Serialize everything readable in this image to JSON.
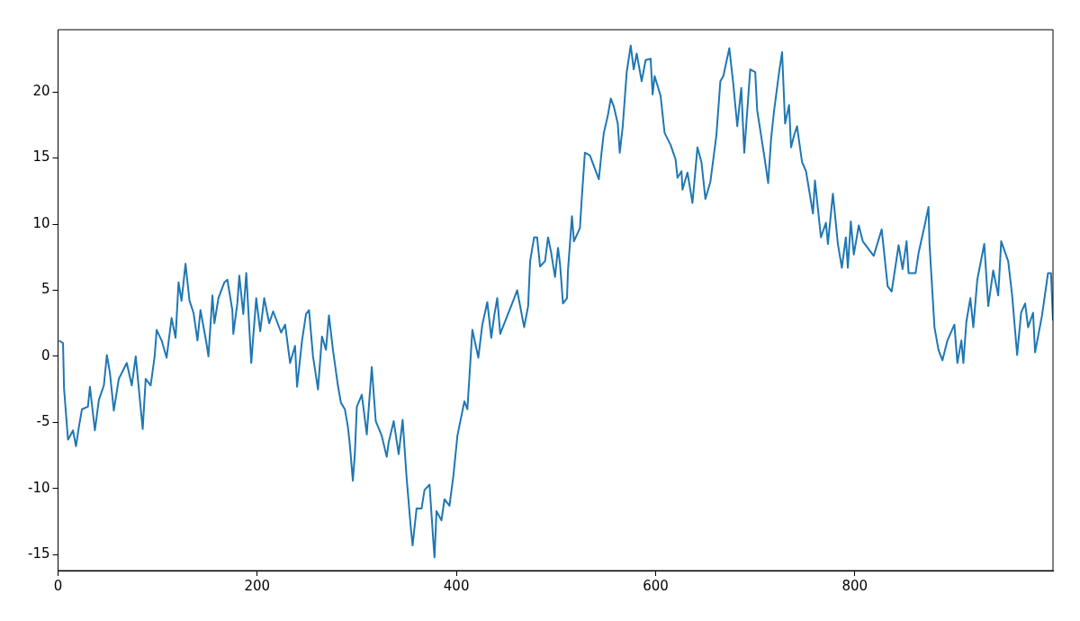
{
  "chart_data": {
    "type": "line",
    "x": [
      1,
      5,
      6,
      10,
      15,
      18,
      21,
      24,
      30,
      32,
      37,
      41,
      46,
      49,
      52,
      56,
      61,
      69,
      74,
      78,
      85,
      88,
      93,
      97,
      99,
      104,
      109,
      114,
      118,
      121,
      124,
      128,
      132,
      136,
      140,
      143,
      149,
      151,
      155,
      157,
      161,
      167,
      170,
      175,
      176,
      180,
      182,
      186,
      189,
      194,
      196,
      199,
      203,
      207,
      212,
      216,
      224,
      228,
      233,
      238,
      240,
      245,
      249,
      252,
      256,
      261,
      265,
      269,
      272,
      276,
      281,
      284,
      288,
      291,
      293,
      296,
      298,
      300,
      305,
      310,
      315,
      319,
      325,
      330,
      332,
      337,
      342,
      346,
      350,
      354,
      356,
      360,
      365,
      368,
      373,
      377,
      378,
      380,
      385,
      388,
      393,
      397,
      401,
      408,
      411,
      416,
      422,
      426,
      431,
      435,
      438,
      441,
      444,
      458,
      461,
      468,
      472,
      474,
      478,
      481,
      484,
      489,
      492,
      495,
      499,
      502,
      504,
      507,
      511,
      512,
      516,
      518,
      524,
      526,
      529,
      534,
      539,
      543,
      546,
      548,
      552,
      555,
      558,
      562,
      564,
      567,
      571,
      575,
      578,
      581,
      586,
      590,
      595,
      597,
      599,
      605,
      609,
      615,
      620,
      622,
      626,
      627,
      632,
      637,
      642,
      646,
      650,
      655,
      661,
      665,
      668,
      674,
      678,
      682,
      686,
      689,
      695,
      700,
      702,
      709,
      713,
      716,
      719,
      724,
      727,
      730,
      734,
      736,
      739,
      742,
      747,
      751,
      758,
      760,
      766,
      771,
      773,
      778,
      783,
      787,
      791,
      793,
      796,
      799,
      804,
      808,
      819,
      827,
      833,
      837,
      844,
      848,
      852,
      854,
      861,
      864,
      871,
      874,
      875,
      880,
      884,
      888,
      893,
      900,
      903,
      907,
      909,
      912,
      916,
      919,
      923,
      930,
      934,
      939,
      944,
      947,
      954,
      958,
      963,
      967,
      971,
      974,
      979,
      981,
      988,
      994,
      997,
      999
    ],
    "series": [
      {
        "color": "#1f77b4",
        "values": [
          1.2,
          1.0,
          -2.4,
          -6.3,
          -5.6,
          -6.8,
          -5.3,
          -4.0,
          -3.8,
          -2.3,
          -5.6,
          -3.3,
          -2.2,
          0.1,
          -1.2,
          -4.1,
          -1.7,
          -0.5,
          -2.2,
          0.0,
          -5.5,
          -1.7,
          -2.2,
          0.0,
          2.0,
          1.2,
          -0.1,
          2.9,
          1.4,
          5.6,
          4.2,
          7.0,
          4.2,
          3.3,
          1.2,
          3.5,
          1.0,
          0.0,
          4.6,
          2.5,
          4.4,
          5.6,
          5.8,
          3.5,
          1.7,
          4.0,
          6.1,
          3.2,
          6.3,
          -0.5,
          1.5,
          4.4,
          1.9,
          4.4,
          2.5,
          3.4,
          1.8,
          2.4,
          -0.5,
          0.8,
          -2.3,
          1.2,
          3.2,
          3.5,
          0.0,
          -2.5,
          1.5,
          0.5,
          3.1,
          0.5,
          -2.2,
          -3.5,
          -4.0,
          -5.3,
          -6.7,
          -9.4,
          -7.4,
          -3.8,
          -2.9,
          -5.9,
          -0.8,
          -4.9,
          -6.0,
          -7.6,
          -6.5,
          -4.9,
          -7.4,
          -4.8,
          -9.2,
          -12.8,
          -14.3,
          -11.5,
          -11.5,
          -10.1,
          -9.7,
          -14.2,
          -15.2,
          -11.7,
          -12.4,
          -10.8,
          -11.3,
          -9.0,
          -6.0,
          -3.4,
          -4.0,
          2.0,
          -0.1,
          2.4,
          4.1,
          1.4,
          3.1,
          4.4,
          1.7,
          4.4,
          5.0,
          2.2,
          3.8,
          7.2,
          9.0,
          9.0,
          6.8,
          7.2,
          9.0,
          7.9,
          6.0,
          8.2,
          7.0,
          4.0,
          4.4,
          6.5,
          10.6,
          8.7,
          9.7,
          12.1,
          15.4,
          15.2,
          14.2,
          13.4,
          15.6,
          16.9,
          18.2,
          19.5,
          18.9,
          17.6,
          15.4,
          17.4,
          21.5,
          23.5,
          21.7,
          22.9,
          20.8,
          22.4,
          22.5,
          19.8,
          21.2,
          19.7,
          16.9,
          16.0,
          14.9,
          13.5,
          14.0,
          12.6,
          13.9,
          11.6,
          15.8,
          14.7,
          11.9,
          13.2,
          16.7,
          20.8,
          21.2,
          23.3,
          20.6,
          17.4,
          20.3,
          15.4,
          21.7,
          21.5,
          18.6,
          15.2,
          13.1,
          16.5,
          18.6,
          21.5,
          23.0,
          17.6,
          19.0,
          15.8,
          16.7,
          17.4,
          14.7,
          14.0,
          10.8,
          13.3,
          9.0,
          10.1,
          8.5,
          12.3,
          8.5,
          6.7,
          9.0,
          6.7,
          10.2,
          7.7,
          9.9,
          8.7,
          7.6,
          9.6,
          5.3,
          4.9,
          8.4,
          6.6,
          8.7,
          6.3,
          6.3,
          7.8,
          10.2,
          11.3,
          8.5,
          2.2,
          0.5,
          -0.3,
          1.2,
          2.4,
          -0.5,
          1.2,
          -0.5,
          2.6,
          4.4,
          2.2,
          5.8,
          8.5,
          3.8,
          6.5,
          4.6,
          8.7,
          7.2,
          4.6,
          0.1,
          3.3,
          4.0,
          2.2,
          3.3,
          0.3,
          3.1,
          6.3,
          6.3,
          2.7
        ]
      }
    ],
    "xlim": [
      0,
      999
    ],
    "ylim": [
      -16.2,
      24.7
    ],
    "xticks": [
      0,
      200,
      400,
      600,
      800
    ],
    "yticks": [
      -15,
      -10,
      -5,
      0,
      5,
      10,
      15,
      20
    ],
    "grid": false,
    "legend": false
  }
}
